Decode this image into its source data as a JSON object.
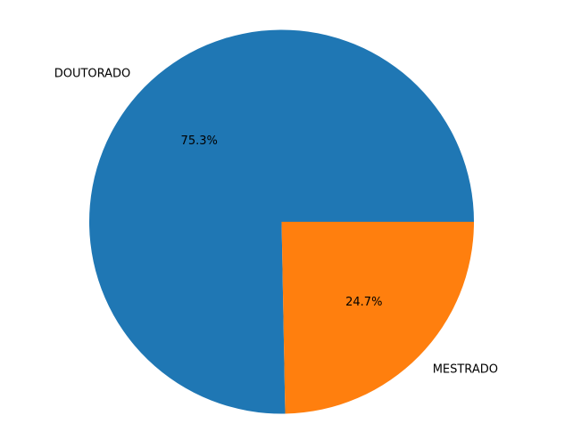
{
  "chart_data": {
    "type": "pie",
    "categories": [
      "DOUTORADO",
      "MESTRADO"
    ],
    "values": [
      75.3,
      24.7
    ],
    "percent_labels": [
      "75.3%",
      "24.7%"
    ],
    "colors": [
      "#1f77b4",
      "#ff7f0e"
    ],
    "start_angle_deg": 0,
    "direction": "counterclockwise",
    "title": "",
    "legend": "none"
  }
}
